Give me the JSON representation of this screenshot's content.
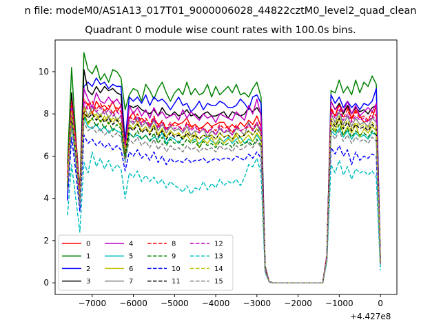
{
  "window": {
    "suptitle": "n file: modeM0/AS1A13_017T01_9000006028_44822cztM0_level2_quad_clean",
    "title": "Quadrant 0 module wise count rates with 100.0s bins.",
    "x_offset_label": "+4.427e8"
  },
  "chart_data": {
    "type": "line",
    "title": "Quadrant 0 module wise count rates with 100.0s bins.",
    "xlabel": "",
    "ylabel": "",
    "x_offset": 442700000,
    "xlim": [
      -7900,
      400
    ],
    "ylim": [
      -0.55,
      11.5
    ],
    "xticks": [
      -7000,
      -6000,
      -5000,
      -4000,
      -3000,
      -2000,
      -1000,
      0
    ],
    "xtick_labels": [
      "−7000",
      "−6000",
      "−5000",
      "−4000",
      "−3000",
      "−2000",
      "−1000",
      "0"
    ],
    "yticks": [
      0,
      2,
      4,
      6,
      8,
      10
    ],
    "ytick_labels": [
      "0",
      "2",
      "4",
      "6",
      "8",
      "10"
    ],
    "grid": false,
    "legend_placement": "lower-left",
    "legend_columns": 4,
    "x": [
      -7600,
      -7500,
      -7400,
      -7300,
      -7200,
      -7100,
      -7000,
      -6900,
      -6800,
      -6700,
      -6600,
      -6500,
      -6400,
      -6300,
      -6200,
      -6100,
      -6000,
      -5900,
      -5800,
      -5700,
      -5600,
      -5500,
      -5400,
      -5300,
      -5200,
      -5100,
      -5000,
      -4900,
      -4800,
      -4700,
      -4600,
      -4500,
      -4400,
      -4300,
      -4200,
      -4100,
      -4000,
      -3900,
      -3800,
      -3700,
      -3600,
      -3500,
      -3400,
      -3300,
      -3200,
      -3100,
      -3000,
      -2900,
      -2800,
      -2700,
      -2600,
      -2500,
      -1400,
      -1300,
      -1200,
      -1100,
      -1000,
      -900,
      -800,
      -700,
      -600,
      -500,
      -400,
      -300,
      -200,
      -100,
      0
    ],
    "series": [
      {
        "name": "0",
        "color": "#ff0000",
        "dash": "solid",
        "values": [
          5.2,
          8.5,
          6.6,
          4.1,
          8.0,
          8.5,
          8.0,
          8.6,
          8.3,
          8.4,
          8.2,
          8.6,
          8.1,
          8.4,
          6.6,
          7.8,
          8.1,
          7.6,
          7.8,
          7.6,
          7.4,
          7.8,
          7.5,
          7.6,
          7.3,
          7.4,
          7.6,
          7.5,
          7.6,
          7.8,
          7.4,
          7.5,
          7.3,
          7.4,
          7.6,
          7.4,
          7.5,
          7.6,
          7.6,
          7.3,
          7.5,
          7.3,
          7.6,
          7.4,
          7.7,
          7.5,
          7.9,
          7.4,
          0.7,
          0.05,
          0,
          0,
          0,
          1.3,
          8.2,
          7.9,
          8.5,
          8.1,
          8.3,
          7.8,
          8.2,
          7.9,
          7.6,
          7.7,
          7.8,
          8.4,
          1.0
        ]
      },
      {
        "name": "1",
        "color": "#008000",
        "dash": "solid",
        "values": [
          5.6,
          10.2,
          7.0,
          4.4,
          10.9,
          10.1,
          9.9,
          10.3,
          9.6,
          9.9,
          9.5,
          10.1,
          10.0,
          9.7,
          8.2,
          8.9,
          9.2,
          9.1,
          8.6,
          9.4,
          9.1,
          8.7,
          9.2,
          9.5,
          9.0,
          8.6,
          9.0,
          9.2,
          8.9,
          9.5,
          8.9,
          9.2,
          8.9,
          9.0,
          9.4,
          8.8,
          9.3,
          8.9,
          9.1,
          9.3,
          9.0,
          9.4,
          8.9,
          9.0,
          8.8,
          9.2,
          9.5,
          8.8,
          0.8,
          0.05,
          0,
          0,
          0,
          1.3,
          9.1,
          9.0,
          9.6,
          9.0,
          9.3,
          8.9,
          9.6,
          9.0,
          9.5,
          9.3,
          9.8,
          9.4,
          1.1
        ]
      },
      {
        "name": "2",
        "color": "#0000ff",
        "dash": "solid",
        "values": [
          3.9,
          8.4,
          6.1,
          3.7,
          9.3,
          9.5,
          9.3,
          9.7,
          9.4,
          9.5,
          9.2,
          9.4,
          9.3,
          9.3,
          6.7,
          8.8,
          8.6,
          8.8,
          8.5,
          8.9,
          8.4,
          8.8,
          8.6,
          8.7,
          8.5,
          8.2,
          8.5,
          8.8,
          8.4,
          8.5,
          8.1,
          8.3,
          8.6,
          8.2,
          8.5,
          8.4,
          8.4,
          8.6,
          8.5,
          8.3,
          8.3,
          8.4,
          8.7,
          8.5,
          8.2,
          8.8,
          8.9,
          8.5,
          0.7,
          0.05,
          0,
          0,
          0,
          1.3,
          8.9,
          8.5,
          8.8,
          8.3,
          8.6,
          8.3,
          8.5,
          8.2,
          8.5,
          8.4,
          8.6,
          9.2,
          1.0
        ]
      },
      {
        "name": "3",
        "color": "#000000",
        "dash": "solid",
        "values": [
          4.5,
          9.0,
          6.6,
          4.0,
          10.1,
          9.1,
          8.9,
          9.3,
          9.0,
          9.3,
          9.1,
          9.2,
          9.0,
          8.9,
          6.4,
          8.4,
          8.3,
          8.4,
          8.2,
          8.1,
          8.0,
          8.2,
          7.9,
          8.3,
          8.0,
          7.9,
          8.1,
          7.9,
          8.0,
          8.2,
          7.9,
          8.0,
          7.8,
          8.0,
          8.1,
          7.9,
          7.9,
          8.0,
          8.1,
          7.8,
          8.1,
          8.0,
          7.9,
          8.0,
          8.3,
          8.1,
          8.3,
          8.0,
          0.7,
          0.05,
          0,
          0,
          0,
          1.3,
          8.6,
          8.2,
          8.5,
          8.0,
          8.4,
          8.0,
          8.3,
          8.1,
          8.2,
          8.0,
          8.3,
          8.4,
          1.0
        ]
      },
      {
        "name": "4",
        "color": "#bf00bf",
        "dash": "solid",
        "values": [
          5.0,
          8.5,
          6.7,
          4.3,
          9.2,
          8.7,
          8.3,
          9.0,
          8.6,
          8.5,
          8.8,
          8.5,
          8.7,
          8.4,
          6.2,
          8.4,
          8.0,
          8.3,
          7.9,
          8.2,
          7.8,
          8.3,
          7.9,
          8.1,
          7.8,
          7.9,
          8.0,
          7.7,
          8.2,
          7.8,
          8.1,
          7.9,
          7.7,
          8.0,
          7.8,
          7.9,
          7.6,
          8.0,
          7.9,
          7.8,
          7.7,
          8.1,
          7.9,
          7.7,
          8.4,
          8.0,
          8.7,
          7.9,
          0.7,
          0.05,
          0,
          0,
          0,
          1.3,
          8.6,
          8.2,
          8.4,
          8.1,
          8.6,
          8.0,
          8.4,
          7.9,
          8.1,
          8.3,
          8.1,
          8.5,
          1.0
        ]
      },
      {
        "name": "5",
        "color": "#00bfbf",
        "dash": "solid",
        "values": [
          4.6,
          7.6,
          5.8,
          3.9,
          7.8,
          7.4,
          7.3,
          7.5,
          7.2,
          7.4,
          7.1,
          7.3,
          7.2,
          7.1,
          5.8,
          7.1,
          6.9,
          7.0,
          6.8,
          7.0,
          6.7,
          6.9,
          6.8,
          7.1,
          6.6,
          6.9,
          6.8,
          6.6,
          6.9,
          7.0,
          6.7,
          6.8,
          6.6,
          6.8,
          6.9,
          6.7,
          6.6,
          6.8,
          6.7,
          6.9,
          6.6,
          6.8,
          6.9,
          6.6,
          6.8,
          6.7,
          7.0,
          6.7,
          0.6,
          0.05,
          0,
          0,
          0,
          1.2,
          7.2,
          7.0,
          7.3,
          6.9,
          7.2,
          6.8,
          7.1,
          6.9,
          7.0,
          6.8,
          7.1,
          7.0,
          0.9
        ]
      },
      {
        "name": "6",
        "color": "#bfbf00",
        "dash": "solid",
        "values": [
          4.9,
          8.0,
          6.3,
          4.1,
          8.1,
          7.5,
          7.8,
          8.0,
          7.6,
          7.9,
          7.5,
          7.8,
          7.7,
          7.4,
          5.9,
          7.5,
          7.3,
          7.6,
          7.2,
          7.4,
          7.1,
          7.5,
          7.0,
          7.3,
          6.9,
          7.2,
          7.0,
          7.1,
          6.8,
          7.0,
          6.7,
          7.0,
          6.4,
          6.8,
          6.6,
          6.9,
          6.5,
          6.9,
          6.6,
          6.8,
          6.7,
          7.0,
          6.6,
          6.8,
          7.0,
          6.7,
          7.1,
          6.8,
          0.6,
          0.05,
          0,
          0,
          0,
          1.2,
          7.6,
          7.2,
          7.8,
          7.0,
          7.4,
          7.1,
          7.5,
          6.9,
          7.3,
          7.1,
          7.4,
          7.2,
          0.9
        ]
      },
      {
        "name": "7",
        "color": "#808080",
        "dash": "solid",
        "values": [
          4.8,
          8.2,
          6.2,
          4.0,
          8.4,
          7.9,
          8.3,
          8.1,
          7.9,
          8.2,
          7.8,
          8.1,
          7.7,
          7.9,
          6.0,
          7.7,
          7.5,
          7.8,
          7.4,
          7.6,
          7.3,
          7.7,
          7.2,
          7.5,
          7.1,
          7.4,
          7.2,
          7.3,
          7.1,
          7.4,
          7.0,
          7.2,
          7.1,
          7.3,
          6.9,
          7.2,
          7.0,
          7.3,
          7.1,
          7.2,
          7.0,
          7.3,
          7.2,
          7.0,
          7.6,
          7.2,
          7.5,
          7.1,
          0.6,
          0.05,
          0,
          0,
          0,
          1.2,
          8.0,
          7.6,
          8.1,
          7.5,
          7.9,
          7.4,
          7.8,
          7.5,
          7.6,
          7.4,
          7.8,
          7.6,
          0.9
        ]
      },
      {
        "name": "8",
        "color": "#ff0000",
        "dash": "dashed",
        "values": [
          5.1,
          8.6,
          6.8,
          4.2,
          8.7,
          8.4,
          8.6,
          8.2,
          8.5,
          8.1,
          8.4,
          8.0,
          8.3,
          8.1,
          6.5,
          7.9,
          7.7,
          8.0,
          7.6,
          7.8,
          7.5,
          7.9,
          7.4,
          7.7,
          7.3,
          7.6,
          7.4,
          7.5,
          7.2,
          7.6,
          7.3,
          7.5,
          7.2,
          7.4,
          7.1,
          7.4,
          7.2,
          7.5,
          7.3,
          7.4,
          7.1,
          7.5,
          7.2,
          7.3,
          7.4,
          7.3,
          7.6,
          7.2,
          0.7,
          0.05,
          0,
          0,
          0,
          1.3,
          8.3,
          7.9,
          8.4,
          7.8,
          8.2,
          7.7,
          8.1,
          7.8,
          7.9,
          7.7,
          8.1,
          7.9,
          1.0
        ]
      },
      {
        "name": "9",
        "color": "#008000",
        "dash": "dashed",
        "values": [
          4.5,
          7.8,
          6.0,
          3.8,
          7.9,
          7.6,
          7.8,
          7.4,
          7.7,
          7.3,
          7.6,
          7.2,
          7.5,
          7.3,
          5.9,
          7.1,
          6.9,
          7.2,
          6.8,
          7.0,
          6.7,
          7.1,
          6.6,
          6.9,
          6.5,
          6.8,
          6.6,
          6.7,
          6.5,
          6.8,
          6.6,
          6.7,
          6.4,
          6.7,
          6.5,
          6.6,
          6.4,
          6.7,
          6.5,
          6.6,
          6.4,
          6.7,
          6.5,
          6.6,
          6.7,
          6.5,
          6.8,
          6.5,
          0.6,
          0.05,
          0,
          0,
          0,
          1.2,
          7.4,
          7.1,
          7.5,
          7.0,
          7.3,
          6.9,
          7.2,
          7.0,
          7.1,
          6.9,
          7.2,
          7.0,
          0.9
        ]
      },
      {
        "name": "10",
        "color": "#0000ff",
        "dash": "dashed",
        "values": [
          4.0,
          6.9,
          5.3,
          3.4,
          7.0,
          6.6,
          6.8,
          6.5,
          6.7,
          6.4,
          6.6,
          6.3,
          6.5,
          6.3,
          5.3,
          6.2,
          6.0,
          6.3,
          5.9,
          6.1,
          5.8,
          6.2,
          5.7,
          6.0,
          5.6,
          5.9,
          5.7,
          5.8,
          5.7,
          5.9,
          5.7,
          5.8,
          5.8,
          5.9,
          5.7,
          5.8,
          5.9,
          5.8,
          5.9,
          5.9,
          5.8,
          6.0,
          5.9,
          5.8,
          6.1,
          5.9,
          6.2,
          5.9,
          0.5,
          0.05,
          0,
          0,
          0,
          1.1,
          6.4,
          6.1,
          6.5,
          6.0,
          6.3,
          5.6,
          6.2,
          5.8,
          6.0,
          5.9,
          6.1,
          6.0,
          0.8
        ]
      },
      {
        "name": "11",
        "color": "#000000",
        "dash": "dashed",
        "values": [
          4.7,
          8.0,
          6.2,
          3.9,
          8.1,
          7.8,
          8.0,
          7.7,
          7.9,
          7.6,
          7.8,
          7.5,
          7.7,
          7.5,
          6.1,
          7.4,
          7.2,
          7.5,
          7.1,
          7.3,
          7.0,
          7.4,
          6.9,
          7.2,
          6.8,
          7.1,
          6.9,
          7.0,
          6.8,
          7.1,
          6.9,
          7.0,
          6.8,
          7.0,
          6.9,
          7.0,
          6.8,
          7.1,
          6.9,
          7.0,
          6.8,
          7.1,
          6.9,
          7.0,
          7.2,
          7.0,
          7.3,
          7.0,
          0.6,
          0.05,
          0,
          0,
          0,
          1.2,
          7.7,
          7.4,
          7.8,
          7.3,
          7.6,
          7.2,
          7.5,
          7.3,
          7.4,
          7.2,
          7.5,
          7.3,
          0.9
        ]
      },
      {
        "name": "12",
        "color": "#bf00bf",
        "dash": "dashed",
        "values": [
          5.0,
          8.3,
          6.5,
          4.1,
          8.6,
          8.2,
          8.4,
          8.1,
          8.3,
          8.0,
          8.2,
          7.9,
          8.1,
          7.9,
          6.4,
          7.8,
          7.6,
          7.9,
          7.5,
          7.7,
          7.4,
          7.8,
          7.3,
          7.6,
          7.2,
          7.5,
          7.3,
          7.4,
          7.2,
          7.5,
          7.2,
          7.4,
          7.1,
          7.3,
          7.1,
          7.3,
          7.0,
          7.4,
          7.1,
          7.3,
          7.0,
          7.4,
          7.2,
          7.3,
          7.5,
          7.2,
          7.6,
          7.2,
          0.7,
          0.05,
          0,
          0,
          0,
          1.3,
          8.1,
          7.8,
          8.2,
          7.7,
          8.0,
          7.6,
          7.9,
          7.7,
          7.8,
          7.6,
          7.9,
          7.7,
          1.0
        ]
      },
      {
        "name": "13",
        "color": "#00bfbf",
        "dash": "dashed",
        "values": [
          3.2,
          5.6,
          4.0,
          2.4,
          5.7,
          5.2,
          6.2,
          5.5,
          5.9,
          5.4,
          5.8,
          5.3,
          5.6,
          5.4,
          4.0,
          5.2,
          5.0,
          5.3,
          4.8,
          5.1,
          4.8,
          5.0,
          4.7,
          4.9,
          4.5,
          4.8,
          4.6,
          4.5,
          4.3,
          4.6,
          4.2,
          4.5,
          4.4,
          4.8,
          4.4,
          4.7,
          4.5,
          4.9,
          4.6,
          4.8,
          4.7,
          4.9,
          4.6,
          5.0,
          5.6,
          5.5,
          5.9,
          5.2,
          0.5,
          0.05,
          0,
          0,
          0,
          1.0,
          5.6,
          5.2,
          5.8,
          5.1,
          5.5,
          4.9,
          5.4,
          5.2,
          5.3,
          5.1,
          5.3,
          5.0,
          0.6
        ]
      },
      {
        "name": "14",
        "color": "#bfbf00",
        "dash": "dashed",
        "values": [
          4.8,
          8.1,
          6.3,
          4.0,
          8.3,
          7.9,
          8.1,
          7.8,
          8.0,
          7.7,
          7.9,
          7.6,
          7.8,
          7.6,
          6.2,
          7.5,
          7.3,
          7.6,
          7.2,
          7.4,
          7.1,
          7.5,
          7.0,
          7.3,
          6.9,
          7.2,
          7.0,
          7.1,
          6.9,
          7.2,
          6.9,
          7.1,
          6.8,
          7.0,
          6.9,
          7.0,
          6.8,
          7.1,
          6.9,
          7.0,
          6.8,
          7.1,
          6.9,
          7.0,
          7.2,
          7.0,
          7.3,
          7.0,
          0.6,
          0.05,
          0,
          0,
          0,
          1.2,
          7.8,
          7.5,
          7.9,
          7.4,
          7.7,
          7.3,
          7.6,
          7.4,
          7.5,
          7.3,
          7.6,
          7.4,
          0.9
        ]
      },
      {
        "name": "15",
        "color": "#808080",
        "dash": "dashed",
        "values": [
          4.4,
          7.5,
          5.8,
          3.7,
          7.6,
          7.2,
          7.4,
          7.1,
          7.3,
          7.0,
          7.2,
          6.9,
          7.1,
          6.9,
          5.7,
          6.8,
          6.6,
          6.9,
          6.5,
          6.7,
          6.4,
          6.8,
          6.3,
          6.6,
          6.2,
          6.5,
          6.3,
          6.4,
          6.2,
          6.5,
          6.3,
          6.4,
          6.2,
          6.4,
          6.3,
          6.4,
          6.2,
          6.5,
          6.3,
          6.4,
          6.2,
          6.5,
          6.3,
          6.4,
          6.6,
          6.4,
          6.7,
          6.4,
          0.6,
          0.05,
          0,
          0,
          0,
          1.1,
          7.1,
          6.8,
          7.2,
          6.7,
          7.0,
          6.6,
          6.9,
          6.7,
          6.8,
          6.6,
          6.9,
          6.7,
          0.8
        ]
      }
    ]
  }
}
